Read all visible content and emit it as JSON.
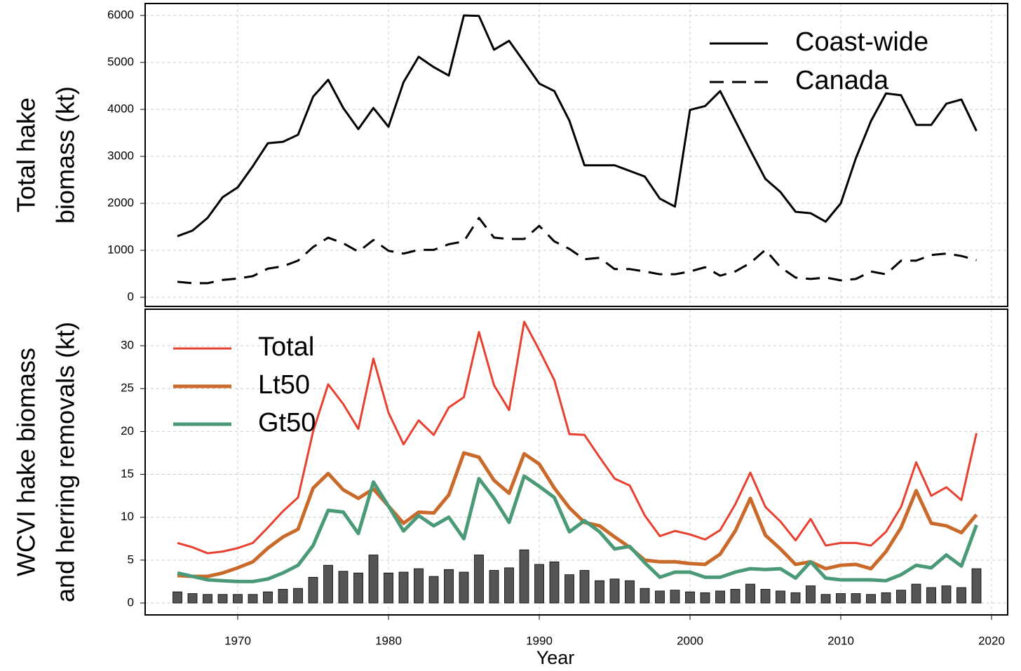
{
  "chart_data": [
    {
      "type": "line",
      "ylabel": [
        "Total hake",
        "biomass (kt)"
      ],
      "x": [
        1966,
        1967,
        1968,
        1969,
        1970,
        1971,
        1972,
        1973,
        1974,
        1975,
        1976,
        1977,
        1978,
        1979,
        1980,
        1981,
        1982,
        1983,
        1984,
        1985,
        1986,
        1987,
        1988,
        1989,
        1990,
        1991,
        1992,
        1993,
        1994,
        1995,
        1996,
        1997,
        1998,
        1999,
        2000,
        2001,
        2002,
        2003,
        2004,
        2005,
        2006,
        2007,
        2008,
        2009,
        2010,
        2011,
        2012,
        2013,
        2014,
        2015,
        2016,
        2017,
        2018,
        2019
      ],
      "xlim": [
        1963.86,
        2021.07
      ],
      "xticks": [
        1970,
        1980,
        1990,
        2000,
        2010,
        2020
      ],
      "ylim": [
        -194,
        6254
      ],
      "yticks": [
        0,
        1000,
        2000,
        3000,
        4000,
        5000,
        6000
      ],
      "grid": true,
      "legend": "top-right",
      "series": [
        {
          "name": "Coast-wide",
          "color": "#000000",
          "linewidth": 3,
          "dash": false,
          "values": [
            1300,
            1420,
            1690,
            2130,
            2340,
            2790,
            3280,
            3310,
            3460,
            4270,
            4630,
            4030,
            3580,
            4030,
            3630,
            4580,
            5120,
            4900,
            4720,
            6000,
            5990,
            5270,
            5460,
            5010,
            4550,
            4390,
            3760,
            2810,
            2810,
            2810,
            2690,
            2570,
            2100,
            1930,
            3990,
            4070,
            4390,
            3760,
            3130,
            2520,
            2240,
            1820,
            1790,
            1610,
            2000,
            2960,
            3750,
            4340,
            4300,
            3670,
            3670,
            4120,
            4210,
            3540
          ]
        },
        {
          "name": "Canada",
          "color": "#000000",
          "linewidth": 3,
          "dash": true,
          "values": [
            330,
            300,
            300,
            370,
            400,
            450,
            610,
            660,
            780,
            1070,
            1270,
            1150,
            970,
            1220,
            990,
            930,
            1010,
            1010,
            1130,
            1190,
            1690,
            1270,
            1240,
            1240,
            1520,
            1190,
            1030,
            810,
            840,
            600,
            600,
            550,
            490,
            490,
            550,
            640,
            460,
            550,
            730,
            1010,
            640,
            420,
            390,
            420,
            360,
            390,
            550,
            490,
            780,
            780,
            900,
            930,
            880,
            790
          ]
        }
      ]
    },
    {
      "type": "line",
      "ylabel": [
        "WCVI hake biomass",
        "and herring removals (kt)"
      ],
      "xlabel": "Year",
      "x": [
        1966,
        1967,
        1968,
        1969,
        1970,
        1971,
        1972,
        1973,
        1974,
        1975,
        1976,
        1977,
        1978,
        1979,
        1980,
        1981,
        1982,
        1983,
        1984,
        1985,
        1986,
        1987,
        1988,
        1989,
        1990,
        1991,
        1992,
        1993,
        1994,
        1995,
        1996,
        1997,
        1998,
        1999,
        2000,
        2001,
        2002,
        2003,
        2004,
        2005,
        2006,
        2007,
        2008,
        2009,
        2010,
        2011,
        2012,
        2013,
        2014,
        2015,
        2016,
        2017,
        2018,
        2019
      ],
      "xlim": [
        1963.86,
        2021.07
      ],
      "xticks": [
        1970,
        1980,
        1990,
        2000,
        2010,
        2020
      ],
      "ylim": [
        -1.39,
        34.26
      ],
      "yticks": [
        0,
        5,
        10,
        15,
        20,
        25,
        30
      ],
      "grid": true,
      "legend": "top-left",
      "series": [
        {
          "type": "bar",
          "color": "#555555",
          "values": [
            1.3,
            1.1,
            1.0,
            1.0,
            1.0,
            1.0,
            1.3,
            1.6,
            1.7,
            3.0,
            4.4,
            3.7,
            3.5,
            5.6,
            3.5,
            3.6,
            4.0,
            3.1,
            3.9,
            3.6,
            5.6,
            3.8,
            4.1,
            6.2,
            4.5,
            4.8,
            3.3,
            3.8,
            2.6,
            2.8,
            2.6,
            1.7,
            1.4,
            1.5,
            1.3,
            1.2,
            1.4,
            1.6,
            2.2,
            1.6,
            1.4,
            1.2,
            2.0,
            1.0,
            1.1,
            1.1,
            1.0,
            1.2,
            1.5,
            2.2,
            1.8,
            2.0,
            1.8,
            4.0
          ]
        },
        {
          "name": "Total",
          "color": "#e8402f",
          "linewidth": 3,
          "values": [
            7.0,
            6.5,
            5.8,
            6.0,
            6.4,
            7.0,
            8.8,
            10.7,
            12.3,
            20,
            25.5,
            23.2,
            20.3,
            28.5,
            22.2,
            18.5,
            21.3,
            19.6,
            22.8,
            24,
            31.6,
            25.4,
            22.5,
            32.8,
            29.5,
            26,
            19.7,
            19.6,
            17,
            14.5,
            13.7,
            10.2,
            7.8,
            8.4,
            8.0,
            7.4,
            8.5,
            11.5,
            15.2,
            11.2,
            9.5,
            7.3,
            9.8,
            6.7,
            7.0,
            7.0,
            6.7,
            8.3,
            11.2,
            16.4,
            12.5,
            13.5,
            12.0,
            19.8
          ]
        },
        {
          "name": "Lt50",
          "color": "#c96a2a",
          "linewidth": 5,
          "values": [
            3.2,
            3.1,
            3.1,
            3.5,
            4.1,
            4.8,
            6.4,
            7.7,
            8.6,
            13.4,
            15.1,
            13.2,
            12.2,
            13.3,
            11.3,
            9.3,
            10.6,
            10.5,
            12.6,
            17.5,
            17,
            14.3,
            12.8,
            17.4,
            16.2,
            13.4,
            11.1,
            9.4,
            9.0,
            7.7,
            6.5,
            5.0,
            4.8,
            4.8,
            4.6,
            4.5,
            5.7,
            8.4,
            12.2,
            7.9,
            6.3,
            4.5,
            4.8,
            4.0,
            4.4,
            4.5,
            4.0,
            6.0,
            8.8,
            13.1,
            9.3,
            9.0,
            8.2,
            10.3
          ]
        },
        {
          "name": "Gt50",
          "color": "#4a9a78",
          "linewidth": 5,
          "values": [
            3.5,
            3.1,
            2.7,
            2.6,
            2.5,
            2.5,
            2.8,
            3.5,
            4.4,
            6.7,
            10.8,
            10.6,
            8.1,
            14.1,
            11.3,
            8.4,
            10.2,
            9.0,
            10.0,
            7.5,
            14.5,
            12.2,
            9.4,
            14.8,
            13.6,
            12.3,
            8.3,
            9.6,
            8.3,
            6.3,
            6.6,
            4.7,
            3.0,
            3.6,
            3.6,
            3.0,
            3.0,
            3.6,
            4.0,
            3.9,
            4.0,
            2.9,
            4.8,
            2.9,
            2.7,
            2.7,
            2.7,
            2.6,
            3.3,
            4.4,
            4.1,
            5.6,
            4.3,
            9.1
          ]
        }
      ]
    }
  ]
}
